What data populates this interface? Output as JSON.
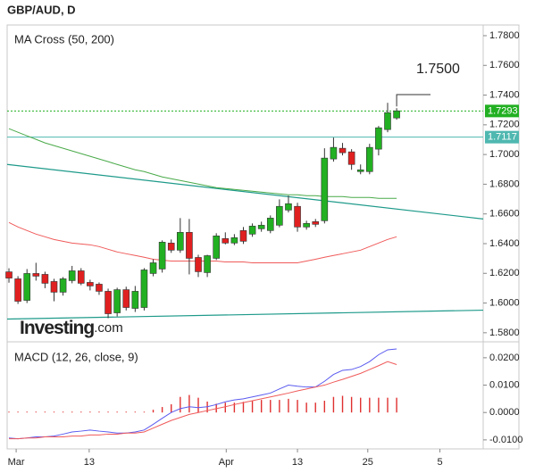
{
  "chart_data": {
    "type": "candlestick",
    "title": "GBP/AUD, D",
    "indicator_title": "MA Cross (50, 200)",
    "macd_title": "MACD (12, 26, close, 9)",
    "logo": "Investing",
    "logo_suffix": ".com",
    "annotation": "1.7500",
    "xlim": [
      -0.2,
      52.6
    ],
    "xticks": [
      {
        "value": 0.8,
        "label": "Mar"
      },
      {
        "value": 8.9,
        "label": "13"
      },
      {
        "value": 24.1,
        "label": "Apr"
      },
      {
        "value": 32,
        "label": "13"
      },
      {
        "value": 39.8,
        "label": "25"
      },
      {
        "value": 47.8,
        "label": "5"
      }
    ],
    "ylim": [
      1.5745,
      1.7872
    ],
    "yticks": [
      {
        "value": 1.78,
        "label": "1.7800"
      },
      {
        "value": 1.76,
        "label": "1.7600"
      },
      {
        "value": 1.74,
        "label": "1.7400"
      },
      {
        "value": 1.72,
        "label": "1.7200"
      },
      {
        "value": 1.7,
        "label": "1.7000"
      },
      {
        "value": 1.68,
        "label": "1.6800"
      },
      {
        "value": 1.66,
        "label": "1.6600"
      },
      {
        "value": 1.64,
        "label": "1.6400"
      },
      {
        "value": 1.62,
        "label": "1.6200"
      },
      {
        "value": 1.6,
        "label": "1.6000"
      },
      {
        "value": 1.58,
        "label": "1.5800"
      }
    ],
    "up_color": "#22b022",
    "down_color": "#e02020",
    "open": [
      1.621,
      1.6163,
      1.6018,
      1.6199,
      1.6193,
      1.6145,
      1.6073,
      1.6151,
      1.6217,
      1.6139,
      1.6127,
      1.6079,
      1.5934,
      1.609,
      1.5964,
      1.597,
      1.6199,
      1.6229,
      1.6404,
      1.6356,
      1.6476,
      1.6307,
      1.6205,
      1.6301,
      1.6434,
      1.6404,
      1.6488,
      1.6464,
      1.65,
      1.6488,
      1.6524,
      1.6626,
      1.6651,
      1.6512,
      1.6548,
      1.6554,
      1.697,
      1.7042,
      1.7018,
      1.6885,
      1.6885,
      1.7036,
      1.7168,
      1.7246
    ],
    "high": [
      1.6234,
      1.6181,
      1.6229,
      1.6271,
      1.6211,
      1.6163,
      1.6175,
      1.625,
      1.6235,
      1.6157,
      1.6139,
      1.6097,
      1.6103,
      1.611,
      1.6115,
      1.6235,
      1.6295,
      1.6422,
      1.6428,
      1.6572,
      1.6566,
      1.6325,
      1.6325,
      1.647,
      1.6476,
      1.6464,
      1.6512,
      1.6536,
      1.6548,
      1.659,
      1.6698,
      1.6723,
      1.6675,
      1.6554,
      1.6566,
      1.7042,
      1.7114,
      1.7078,
      1.7036,
      1.6933,
      1.7072,
      1.7192,
      1.7348,
      1.7312
    ],
    "low": [
      1.6137,
      1.5994,
      1.6,
      1.6151,
      1.61,
      1.6012,
      1.605,
      1.6133,
      1.612,
      1.6085,
      1.6055,
      1.5898,
      1.591,
      1.595,
      1.594,
      1.595,
      1.618,
      1.6205,
      1.6338,
      1.6338,
      1.6193,
      1.6175,
      1.6175,
      1.629,
      1.6395,
      1.639,
      1.6398,
      1.6446,
      1.648,
      1.647,
      1.651,
      1.661,
      1.648,
      1.6494,
      1.6512,
      1.6536,
      1.6952,
      1.6994,
      1.6897,
      1.6867,
      1.6867,
      1.6994,
      1.715,
      1.7234
    ],
    "close": [
      1.6168,
      1.6012,
      1.6199,
      1.6181,
      1.6133,
      1.6073,
      1.6163,
      1.6217,
      1.6133,
      1.6115,
      1.6079,
      1.5928,
      1.609,
      1.597,
      1.6079,
      1.6223,
      1.6271,
      1.641,
      1.6356,
      1.6476,
      1.6301,
      1.6211,
      1.6319,
      1.6452,
      1.6404,
      1.644,
      1.6416,
      1.6518,
      1.6524,
      1.6572,
      1.6651,
      1.6669,
      1.6512,
      1.6536,
      1.653,
      1.6976,
      1.7048,
      1.7012,
      1.6933,
      1.6897,
      1.7048,
      1.718,
      1.7282,
      1.7294
    ],
    "series": [
      {
        "color": "#f05a5a",
        "values": [
          1.6542,
          1.6512,
          1.6488,
          1.6464,
          1.6446,
          1.6428,
          1.6416,
          1.6404,
          1.6398,
          1.6392,
          1.638,
          1.6362,
          1.6344,
          1.6332,
          1.632,
          1.6308,
          1.6295,
          1.6289,
          1.6283,
          1.6283,
          1.6283,
          1.6283,
          1.6283,
          1.6283,
          1.6277,
          1.6277,
          1.6277,
          1.6271,
          1.6271,
          1.6271,
          1.6271,
          1.6271,
          1.6271,
          1.6283,
          1.6295,
          1.6308,
          1.632,
          1.6332,
          1.6344,
          1.6356,
          1.638,
          1.6404,
          1.6428,
          1.6446
        ]
      },
      {
        "color": "#4aaa4a",
        "values": [
          1.7174,
          1.715,
          1.7126,
          1.7102,
          1.7078,
          1.706,
          1.7042,
          1.7024,
          1.7006,
          1.6988,
          1.697,
          1.6952,
          1.6933,
          1.6915,
          1.6897,
          1.6885,
          1.6867,
          1.6849,
          1.6837,
          1.6825,
          1.6813,
          1.6801,
          1.6789,
          1.6777,
          1.6771,
          1.6765,
          1.6759,
          1.6753,
          1.6747,
          1.6741,
          1.6735,
          1.6729,
          1.6729,
          1.6723,
          1.6723,
          1.6717,
          1.6717,
          1.6717,
          1.6711,
          1.6711,
          1.6711,
          1.6705,
          1.6705,
          1.6705
        ]
      }
    ],
    "trendlines": [
      {
        "color": "#1e9a8a",
        "values": [
          1.6933,
          1.6566
        ]
      },
      {
        "color": "#1e9a8a",
        "values": [
          1.5892,
          1.5952
        ]
      }
    ],
    "hlines": [
      {
        "value": 1.7293,
        "label": "1.7293",
        "color": "#22b022",
        "dashed": true
      },
      {
        "value": 1.7117,
        "label": "1.7117",
        "color": "#4fb8b0",
        "dashed": false
      }
    ],
    "macd_ylim": [
      -0.0133,
      0.0255
    ],
    "macd_yticks": [
      {
        "value": 0.02,
        "label": "0.0200"
      },
      {
        "value": 0.01,
        "label": "0.0100"
      },
      {
        "value": 0,
        "label": "0.0000"
      },
      {
        "value": -0.01,
        "label": "-0.0100"
      }
    ],
    "macd_series": [
      {
        "color": "#5a5af0",
        "values": [
          -0.0093,
          -0.0096,
          -0.0093,
          -0.0089,
          -0.0089,
          -0.0086,
          -0.0079,
          -0.0071,
          -0.0068,
          -0.0064,
          -0.0068,
          -0.0071,
          -0.0075,
          -0.0075,
          -0.0071,
          -0.0064,
          -0.0043,
          -0.0021,
          0.0,
          0.0014,
          0.0021,
          0.0018,
          0.0021,
          0.0029,
          0.0039,
          0.0046,
          0.005,
          0.0057,
          0.0064,
          0.0071,
          0.0086,
          0.01,
          0.0096,
          0.0093,
          0.0093,
          0.0114,
          0.0139,
          0.0154,
          0.0157,
          0.0168,
          0.0186,
          0.0211,
          0.0229,
          0.0232
        ]
      },
      {
        "color": "#f05a5a",
        "values": [
          -0.0096,
          -0.0096,
          -0.0093,
          -0.0093,
          -0.0089,
          -0.0089,
          -0.0089,
          -0.0086,
          -0.0086,
          -0.0082,
          -0.0082,
          -0.0079,
          -0.0079,
          -0.0075,
          -0.0075,
          -0.0071,
          -0.0057,
          -0.0043,
          -0.0029,
          -0.0018,
          -0.0007,
          0.0,
          0.0007,
          0.0014,
          0.0021,
          0.0029,
          0.0036,
          0.0043,
          0.005,
          0.0057,
          0.0064,
          0.0071,
          0.0079,
          0.0086,
          0.0093,
          0.01,
          0.0111,
          0.0121,
          0.0132,
          0.0143,
          0.0157,
          0.0171,
          0.0186,
          0.0175
        ]
      }
    ],
    "histogram_color": "#e03030",
    "histogram": [
      0.0003,
      0.0003,
      0.0003,
      0.0003,
      0.0003,
      0.0003,
      0.0003,
      0.0003,
      0.0003,
      0.0003,
      0.0003,
      0.0003,
      0.0003,
      0.0003,
      0.0003,
      0.0003,
      0.001,
      0.002,
      0.003,
      0.0057,
      0.0064,
      0.0054,
      0.004,
      0.0032,
      0.0036,
      0.0036,
      0.0039,
      0.0043,
      0.0046,
      0.0046,
      0.0046,
      0.005,
      0.0046,
      0.0036,
      0.0036,
      0.0043,
      0.0057,
      0.0061,
      0.0057,
      0.0054,
      0.0054,
      0.0054,
      0.0054,
      0.0054
    ]
  }
}
